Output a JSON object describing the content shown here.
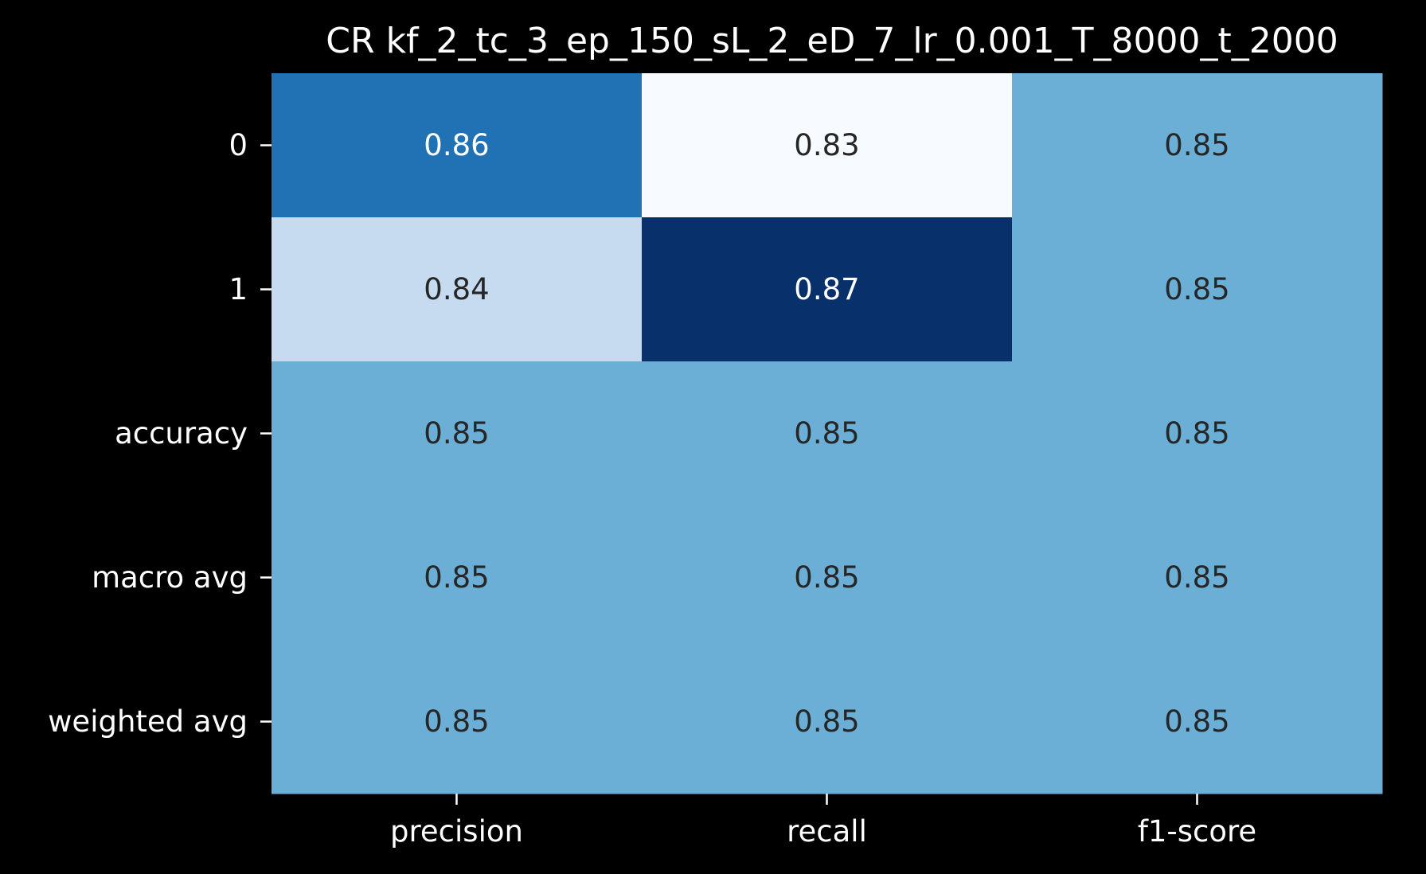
{
  "chart_data": {
    "type": "heatmap",
    "title": "CR kf_2_tc_3_ep_150_sL_2_eD_7_lr_0.001_T_8000_t_2000",
    "xlabel": "",
    "ylabel": "",
    "columns": [
      "precision",
      "recall",
      "f1-score"
    ],
    "rows": [
      "0",
      "1",
      "accuracy",
      "macro avg",
      "weighted avg"
    ],
    "values": [
      [
        0.86,
        0.83,
        0.85
      ],
      [
        0.84,
        0.87,
        0.85
      ],
      [
        0.85,
        0.85,
        0.85
      ],
      [
        0.85,
        0.85,
        0.85
      ],
      [
        0.85,
        0.85,
        0.85
      ]
    ],
    "value_range": [
      0.83,
      0.87
    ],
    "colormap": "Blues",
    "colorbar": false,
    "colors": {
      "background": "#000000",
      "text_light": "#ffffff",
      "text_dark": "#262626",
      "scale": [
        "#f7fbff",
        "#deebf7",
        "#c6dbef",
        "#9ecae1",
        "#6baed6",
        "#4292c6",
        "#2171b5",
        "#08519c",
        "#08306b"
      ]
    }
  }
}
